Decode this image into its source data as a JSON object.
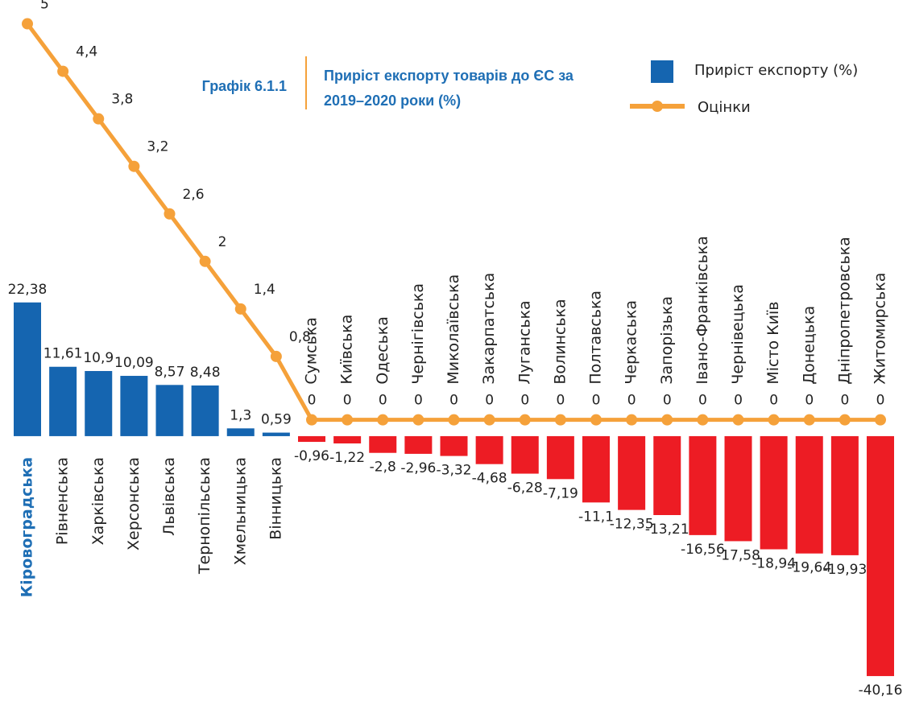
{
  "chart_data": {
    "type": "bar_line",
    "chart_number": "Графік 6.1.1",
    "title": [
      "Приріст експорту товарів до ЄС за",
      "2019–2020 роки (%)"
    ],
    "categories": [
      "Кіровоградська",
      "Рівненська",
      "Харківська",
      "Херсонська",
      "Львівська",
      "Тернопільська",
      "Хмельницька",
      "Вінницька",
      "Сумська",
      "Київська",
      "Одеська",
      "Чернігівська",
      "Миколаївська",
      "Закарпатська",
      "Луганська",
      "Волинська",
      "Полтавська",
      "Черкаська",
      "Запорізька",
      "Івано-Франківська",
      "Чернівецька",
      "Місто Київ",
      "Донецька",
      "Дніпропетровська",
      "Житомирська"
    ],
    "highlight": "Кіровоградська",
    "series": [
      {
        "name": "Приріст експорту (%)",
        "color": "#1565b0",
        "negative_color": "#ed1c24",
        "values": [
          22.38,
          11.61,
          10.9,
          10.09,
          8.57,
          8.48,
          1.3,
          0.59,
          -0.96,
          -1.22,
          -2.8,
          -2.96,
          -3.32,
          -4.68,
          -6.28,
          -7.19,
          -11.1,
          -12.35,
          -13.21,
          -16.56,
          -17.58,
          -18.94,
          -19.64,
          -19.93,
          -40.16
        ],
        "value_labels": [
          "22,38",
          "11,61",
          "10,9",
          "10,09",
          "8,57",
          "8,48",
          "1,3",
          "0,59",
          "-0,96",
          "-1,22",
          "-2,8",
          "-2,96",
          "-3,32",
          "-4,68",
          "-6,28",
          "-7,19",
          "-11,1",
          "-12,35",
          "-13,21",
          "-16,56",
          "-17,58",
          "-18,94",
          "-19,64",
          "-19,93",
          "-40,16"
        ]
      },
      {
        "name": "Оцінки",
        "color": "#f5a13a",
        "axis": "y2",
        "values": [
          5,
          4.4,
          3.8,
          3.2,
          2.6,
          2,
          1.4,
          0.8,
          0,
          0,
          0,
          0,
          0,
          0,
          0,
          0,
          0,
          0,
          0,
          0,
          0,
          0,
          0,
          0,
          0
        ],
        "value_labels": [
          "5",
          "4,4",
          "3,8",
          "3,2",
          "2,6",
          "2",
          "1,4",
          "0,8",
          "0",
          "0",
          "0",
          "0",
          "0",
          "0",
          "0",
          "0",
          "0",
          "0",
          "0",
          "0",
          "0",
          "0",
          "0",
          "0",
          "0"
        ]
      }
    ],
    "ylim": [
      -45,
      73
    ],
    "y2lim": [
      -3.6,
      5.3
    ]
  }
}
